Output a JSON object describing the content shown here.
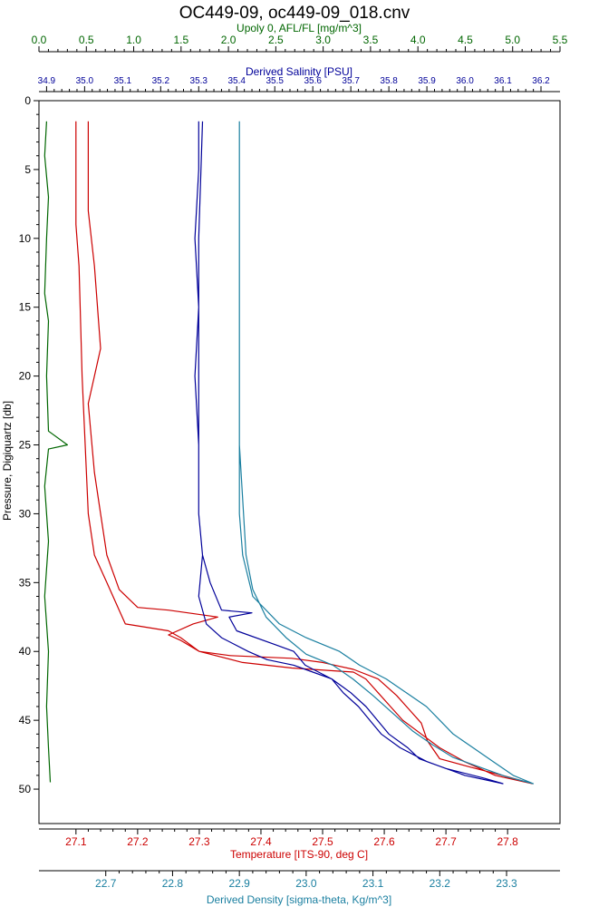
{
  "chart_data": {
    "type": "line",
    "title": "OC449-09, oc449-09_018.cnv",
    "ylabel": "Pressure, Digiquartz [db]",
    "ylim": [
      0,
      52.5
    ],
    "yticks": [
      "0",
      "5",
      "10",
      "15",
      "20",
      "25",
      "30",
      "35",
      "40",
      "45",
      "50"
    ],
    "grid": false,
    "axes": {
      "fluorescence": {
        "label": "Upoly 0, AFL/FL [mg/m^3]",
        "color": "#006600",
        "range": [
          0.0,
          5.5
        ],
        "ticks": [
          "0.0",
          "0.5",
          "1.0",
          "1.5",
          "2.0",
          "2.5",
          "3.0",
          "3.5",
          "4.0",
          "4.5",
          "5.0",
          "5.5"
        ]
      },
      "salinity": {
        "label": "Derived Salinity [PSU]",
        "color": "#000099",
        "range": [
          34.88,
          36.25
        ],
        "ticks": [
          "34.9",
          "35.0",
          "35.1",
          "35.2",
          "35.3",
          "35.4",
          "35.5",
          "35.6",
          "35.7",
          "35.8",
          "35.9",
          "36.0",
          "36.1",
          "36.2"
        ]
      },
      "temperature": {
        "label": "Temperature [ITS-90, deg C]",
        "color": "#cc0000",
        "range": [
          27.04,
          27.885
        ],
        "ticks": [
          "27.1",
          "27.2",
          "27.3",
          "27.4",
          "27.5",
          "27.6",
          "27.7",
          "27.8"
        ]
      },
      "density": {
        "label": "Derived Density [sigma-theta, Kg/m^3]",
        "color": "#1a7fa0",
        "range": [
          22.6,
          23.38
        ],
        "ticks": [
          "22.7",
          "22.8",
          "22.9",
          "23.0",
          "23.1",
          "23.2",
          "23.3"
        ]
      }
    },
    "series": [
      {
        "axis": "temperature",
        "color": "#cc0000",
        "points": [
          [
            27.1,
            1.5
          ],
          [
            27.1,
            9
          ],
          [
            27.105,
            12
          ],
          [
            27.11,
            20
          ],
          [
            27.115,
            25
          ],
          [
            27.12,
            30
          ],
          [
            27.13,
            33
          ],
          [
            27.15,
            35
          ],
          [
            27.17,
            37
          ],
          [
            27.18,
            38
          ],
          [
            27.25,
            38.5
          ],
          [
            27.27,
            39
          ],
          [
            27.3,
            40
          ],
          [
            27.37,
            40.8
          ],
          [
            27.45,
            41.2
          ],
          [
            27.55,
            41.5
          ],
          [
            27.57,
            42
          ],
          [
            27.59,
            43
          ],
          [
            27.61,
            44
          ],
          [
            27.63,
            45
          ],
          [
            27.66,
            46
          ],
          [
            27.69,
            47
          ],
          [
            27.73,
            48
          ],
          [
            27.78,
            49
          ],
          [
            27.84,
            49.6
          ],
          [
            27.8,
            49.1
          ],
          [
            27.74,
            48.4
          ],
          [
            27.69,
            47.8
          ],
          [
            27.67,
            46.5
          ],
          [
            27.66,
            45.2
          ],
          [
            27.64,
            44.2
          ],
          [
            27.62,
            43.2
          ],
          [
            27.59,
            42
          ],
          [
            27.55,
            41.3
          ],
          [
            27.5,
            40.8
          ],
          [
            27.45,
            40.5
          ],
          [
            27.35,
            40.3
          ],
          [
            27.3,
            40
          ],
          [
            27.27,
            39.2
          ],
          [
            27.25,
            38.8
          ],
          [
            27.29,
            38
          ],
          [
            27.33,
            37.5
          ],
          [
            27.25,
            37
          ],
          [
            27.2,
            36.8
          ],
          [
            27.17,
            35.5
          ],
          [
            27.15,
            33
          ],
          [
            27.14,
            30
          ],
          [
            27.13,
            27
          ],
          [
            27.12,
            22
          ],
          [
            27.14,
            18
          ],
          [
            27.13,
            12
          ],
          [
            27.12,
            8
          ],
          [
            27.12,
            4
          ],
          [
            27.12,
            1.5
          ]
        ]
      },
      {
        "axis": "salinity",
        "color": "#000099",
        "points": [
          [
            35.3,
            1.5
          ],
          [
            35.3,
            5
          ],
          [
            35.29,
            10
          ],
          [
            35.3,
            15
          ],
          [
            35.29,
            20
          ],
          [
            35.3,
            25
          ],
          [
            35.3,
            30
          ],
          [
            35.31,
            33
          ],
          [
            35.33,
            35
          ],
          [
            35.36,
            37
          ],
          [
            35.44,
            37.2
          ],
          [
            35.38,
            37.5
          ],
          [
            35.4,
            38.5
          ],
          [
            35.5,
            39.5
          ],
          [
            35.55,
            40
          ],
          [
            35.58,
            41
          ],
          [
            35.65,
            42
          ],
          [
            35.68,
            43
          ],
          [
            35.72,
            44
          ],
          [
            35.75,
            45
          ],
          [
            35.78,
            46
          ],
          [
            35.83,
            47
          ],
          [
            35.9,
            48
          ],
          [
            36.0,
            49
          ],
          [
            36.1,
            49.6
          ],
          [
            36.05,
            49.2
          ],
          [
            35.95,
            48.5
          ],
          [
            35.88,
            47.8
          ],
          [
            35.85,
            47
          ],
          [
            35.8,
            46
          ],
          [
            35.77,
            45
          ],
          [
            35.74,
            44
          ],
          [
            35.7,
            43
          ],
          [
            35.65,
            42
          ],
          [
            35.6,
            41.5
          ],
          [
            35.55,
            41
          ],
          [
            35.48,
            40.6
          ],
          [
            35.43,
            40
          ],
          [
            35.36,
            39
          ],
          [
            35.32,
            38
          ],
          [
            35.3,
            36
          ],
          [
            35.31,
            33
          ],
          [
            35.3,
            30
          ],
          [
            35.3,
            20
          ],
          [
            35.3,
            10
          ],
          [
            35.31,
            1.5
          ]
        ]
      },
      {
        "axis": "density",
        "color": "#1a7fa0",
        "points": [
          [
            22.9,
            1.5
          ],
          [
            22.9,
            10
          ],
          [
            22.9,
            20
          ],
          [
            22.9,
            30
          ],
          [
            22.905,
            33
          ],
          [
            22.92,
            36
          ],
          [
            22.96,
            38
          ],
          [
            23.0,
            39
          ],
          [
            23.05,
            40
          ],
          [
            23.08,
            41
          ],
          [
            23.12,
            42
          ],
          [
            23.15,
            43
          ],
          [
            23.18,
            44
          ],
          [
            23.2,
            45
          ],
          [
            23.22,
            46
          ],
          [
            23.25,
            47
          ],
          [
            23.28,
            48
          ],
          [
            23.31,
            49
          ],
          [
            23.34,
            49.6
          ],
          [
            23.3,
            49.1
          ],
          [
            23.26,
            48.4
          ],
          [
            23.22,
            47.7
          ],
          [
            23.19,
            46.8
          ],
          [
            23.16,
            45.8
          ],
          [
            23.13,
            44.5
          ],
          [
            23.1,
            43.2
          ],
          [
            23.07,
            42
          ],
          [
            23.04,
            41
          ],
          [
            23.0,
            40.2
          ],
          [
            22.97,
            39
          ],
          [
            22.94,
            37.5
          ],
          [
            22.92,
            35.5
          ],
          [
            22.91,
            33
          ],
          [
            22.9,
            25
          ],
          [
            22.9,
            15
          ],
          [
            22.9,
            1.5
          ]
        ]
      },
      {
        "axis": "fluorescence",
        "color": "#006600",
        "points": [
          [
            0.08,
            1.5
          ],
          [
            0.06,
            4
          ],
          [
            0.1,
            7
          ],
          [
            0.08,
            10
          ],
          [
            0.06,
            14
          ],
          [
            0.1,
            16
          ],
          [
            0.08,
            20
          ],
          [
            0.1,
            24
          ],
          [
            0.3,
            25
          ],
          [
            0.1,
            25.3
          ],
          [
            0.06,
            28
          ],
          [
            0.1,
            32
          ],
          [
            0.06,
            36
          ],
          [
            0.1,
            40
          ],
          [
            0.08,
            44
          ],
          [
            0.1,
            47
          ],
          [
            0.12,
            49.5
          ]
        ]
      }
    ]
  }
}
